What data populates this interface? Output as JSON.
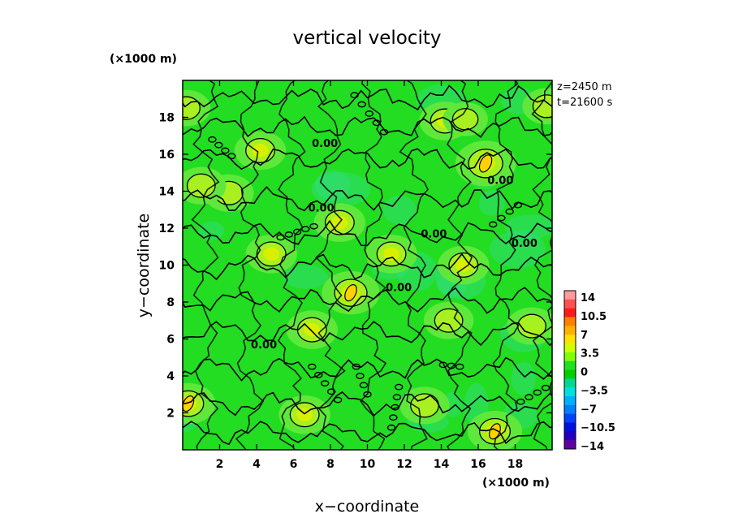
{
  "chart_data": {
    "type": "heatmap",
    "title": "vertical velocity",
    "xlabel": "x−coordinate",
    "ylabel": "y−coordinate",
    "x_unit": "(×1000 m)",
    "y_unit": "(×1000 m)",
    "xlim": [
      0,
      20
    ],
    "ylim": [
      0,
      20
    ],
    "x_ticks": [
      "2",
      "4",
      "6",
      "8",
      "10",
      "12",
      "14",
      "16",
      "18"
    ],
    "y_ticks": [
      "2",
      "4",
      "6",
      "8",
      "10",
      "12",
      "14",
      "16",
      "18"
    ],
    "info": [
      "z=2450 m",
      "t=21600 s"
    ],
    "contour_labels": [
      "0.00",
      "0.00",
      "0.00",
      "0.00",
      "0.00",
      "0.00",
      "0.00"
    ],
    "colorbar": {
      "labels": [
        "14",
        "10.5",
        "7",
        "3.5",
        "0",
        "−3.5",
        "−7",
        "−10.5",
        "−14"
      ],
      "levels": [
        14,
        10.5,
        7,
        3.5,
        0,
        -3.5,
        -7,
        -10.5,
        -14
      ],
      "colors": [
        "#ff9a9a",
        "#ff5050",
        "#ff1a1a",
        "#ff8000",
        "#ffb000",
        "#ffe000",
        "#d0ff00",
        "#80ff00",
        "#20e020",
        "#00d000",
        "#00d890",
        "#00e0e0",
        "#00b0ff",
        "#0080ff",
        "#0040ff",
        "#0010e0",
        "#2000c0",
        "#6000a0"
      ]
    },
    "features": [
      {
        "x": 4.2,
        "y": 16.2,
        "peak": 4
      },
      {
        "x": 2.5,
        "y": 13.9,
        "peak": 3.5
      },
      {
        "x": 1.0,
        "y": 14.3,
        "peak": 3.5
      },
      {
        "x": 14.2,
        "y": 17.8,
        "peak": 4
      },
      {
        "x": 16.4,
        "y": 15.5,
        "peak": 7
      },
      {
        "x": 8.5,
        "y": 12.3,
        "peak": 4
      },
      {
        "x": 4.8,
        "y": 10.6,
        "peak": 4
      },
      {
        "x": 11.3,
        "y": 10.6,
        "peak": 4
      },
      {
        "x": 15.2,
        "y": 10.0,
        "peak": 4
      },
      {
        "x": 9.1,
        "y": 8.5,
        "peak": 6
      },
      {
        "x": 7.0,
        "y": 6.5,
        "peak": 4
      },
      {
        "x": 14.4,
        "y": 7.0,
        "peak": 3.5
      },
      {
        "x": 18.9,
        "y": 6.7,
        "peak": 3.5
      },
      {
        "x": 0.3,
        "y": 2.5,
        "peak": 5
      },
      {
        "x": 6.6,
        "y": 1.9,
        "peak": 4
      },
      {
        "x": 16.9,
        "y": 1.0,
        "peak": 5
      },
      {
        "x": 13.1,
        "y": 2.4,
        "peak": 3.5
      },
      {
        "x": 15.3,
        "y": 17.9,
        "peak": 2
      },
      {
        "x": 19.7,
        "y": 18.6,
        "peak": 3
      },
      {
        "x": 0.2,
        "y": 18.5,
        "peak": 3
      }
    ]
  }
}
